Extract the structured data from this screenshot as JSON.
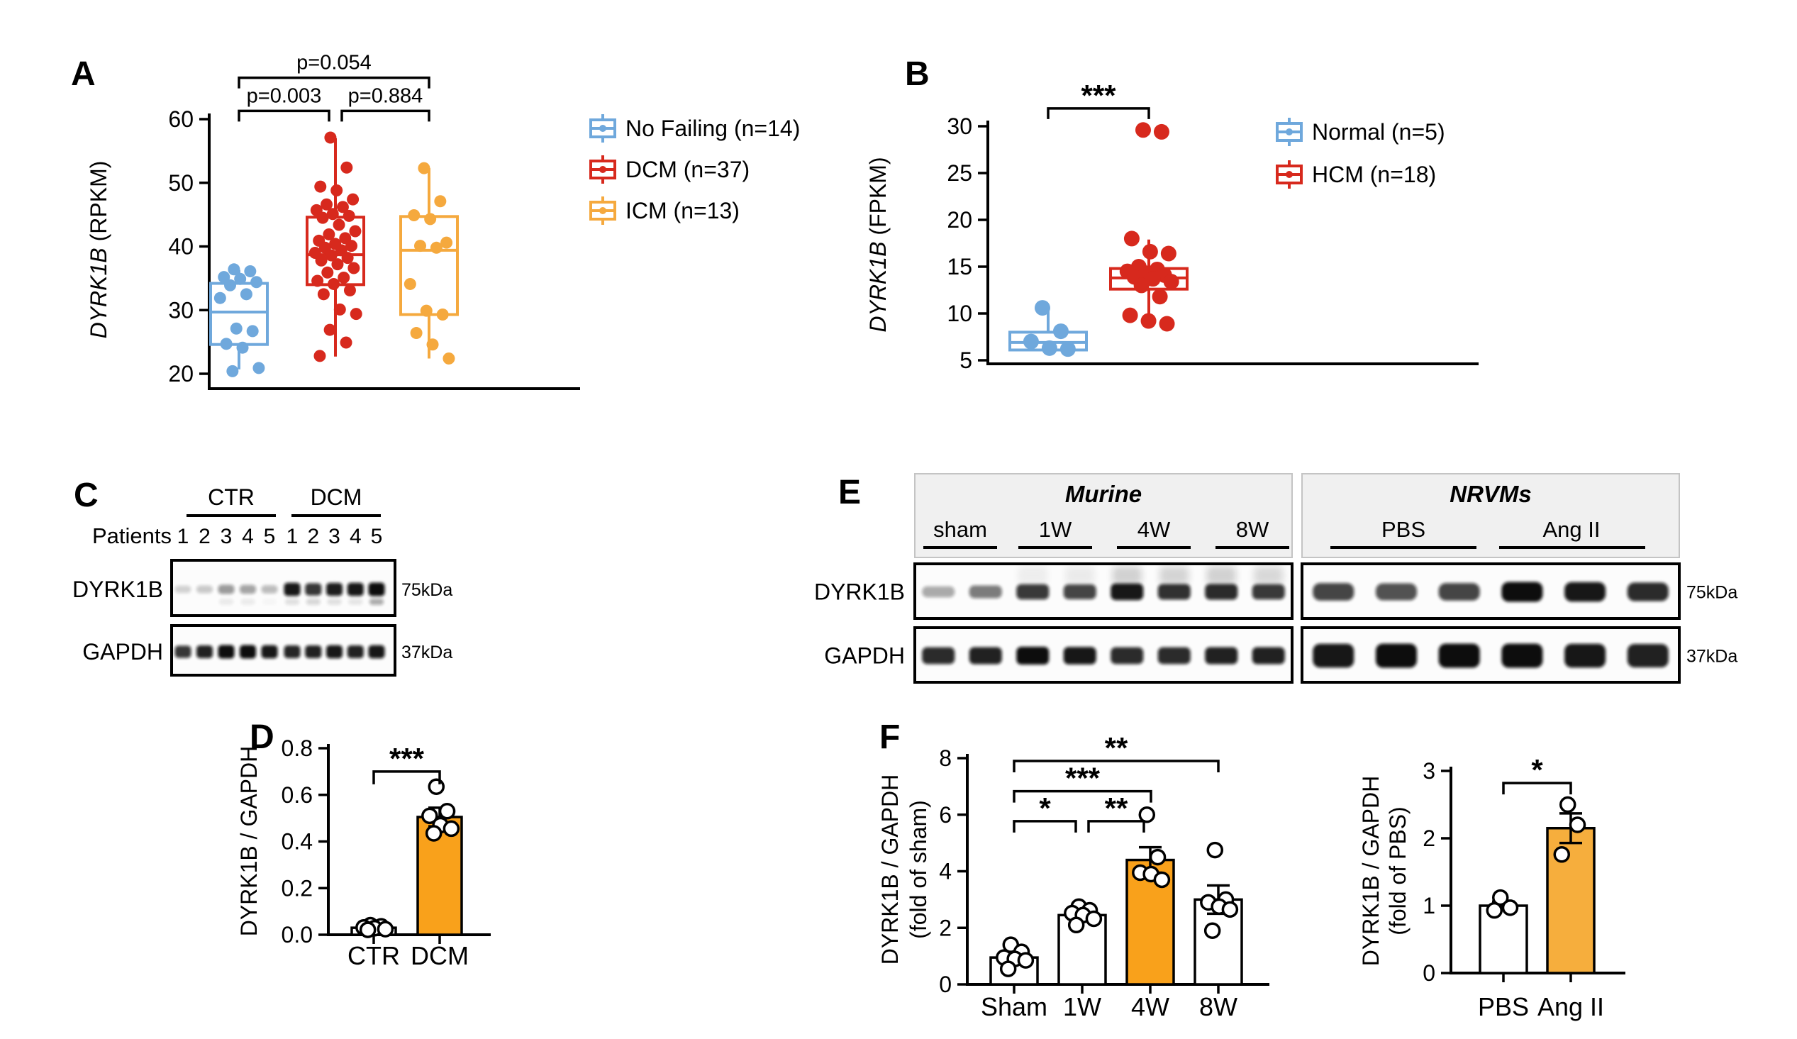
{
  "figure": {
    "background": "#FFFFFF"
  },
  "colors": {
    "blue": "#6FA8DC",
    "red": "#D7291D",
    "orange_box": "#F5A93E",
    "orange_bar": "#F9A11B",
    "orange_bar_light": "#F6AE3D"
  },
  "chart_data": [
    {
      "panel": "A",
      "type": "box",
      "label": "A",
      "ylabel_italic": "DYRK1B",
      "ylabel_rest": "(RPKM)",
      "yticks": [
        20,
        30,
        40,
        50,
        60
      ],
      "ylim": [
        20,
        60
      ],
      "legend": [
        {
          "label": "No Failing (n=14)",
          "color": "#6FA8DC"
        },
        {
          "label": "DCM (n=37)",
          "color": "#D7291D"
        },
        {
          "label": "ICM (n=13)",
          "color": "#F5A93E"
        }
      ],
      "groups": [
        {
          "name": "No Failing",
          "n": 14,
          "color": "#6FA8DC",
          "box": {
            "q1": 24.6,
            "median": 29.7,
            "q3": 34.2,
            "whisker_low": 20.7,
            "whisker_high": 36.3
          },
          "points": [
            36.4,
            36.1,
            35.2,
            34.9,
            34.4,
            33.9,
            32.5,
            31.9,
            27.1,
            26.7,
            24.7,
            24.1,
            20.9,
            20.4
          ]
        },
        {
          "name": "DCM",
          "n": 37,
          "color": "#D7291D",
          "box": {
            "q1": 34.0,
            "median": 38.7,
            "q3": 44.6,
            "whisker_low": 22.7,
            "whisker_high": 57.0
          },
          "points": [
            57.1,
            52.4,
            49.4,
            48.8,
            47.4,
            46.6,
            46.2,
            45.7,
            45.1,
            44.8,
            44.5,
            43.4,
            42.4,
            41.9,
            41.3,
            40.9,
            40.4,
            40.1,
            39.8,
            39.4,
            39.0,
            38.6,
            38.2,
            37.8,
            37.2,
            36.6,
            35.9,
            35.1,
            34.6,
            34.1,
            33.1,
            32.5,
            30.1,
            29.4,
            26.9,
            24.9,
            22.8
          ]
        },
        {
          "name": "ICM",
          "n": 13,
          "color": "#F5A93E",
          "box": {
            "q1": 29.3,
            "median": 39.4,
            "q3": 44.7,
            "whisker_low": 22.4,
            "whisker_high": 52.3
          },
          "points": [
            52.3,
            47.1,
            44.9,
            44.3,
            40.6,
            40.1,
            39.8,
            34.1,
            29.9,
            29.3,
            26.4,
            24.6,
            22.4
          ]
        }
      ],
      "brackets": [
        {
          "from": 0,
          "to": 1,
          "y": 61.3,
          "label": "p=0.003"
        },
        {
          "from": 1,
          "to": 2,
          "y": 61.3,
          "label": "p=0.884"
        },
        {
          "from": 0,
          "to": 2,
          "y": 66.5,
          "label": "p=0.054"
        }
      ]
    },
    {
      "panel": "B",
      "type": "box",
      "label": "B",
      "ylabel_italic": "DYRK1B",
      "ylabel_rest": "(FPKM)",
      "yticks": [
        5,
        10,
        15,
        20,
        25,
        30
      ],
      "ylim": [
        5,
        30
      ],
      "legend": [
        {
          "label": "Normal (n=5)",
          "color": "#6FA8DC"
        },
        {
          "label": "HCM (n=18)",
          "color": "#D7291D"
        }
      ],
      "groups": [
        {
          "name": "Normal",
          "n": 5,
          "color": "#6FA8DC",
          "box": {
            "q1": 6.1,
            "median": 6.9,
            "q3": 8.0,
            "whisker_low": 6.1,
            "whisker_high": 10.4
          },
          "points": [
            10.6,
            8.1,
            7.0,
            6.3,
            6.2
          ]
        },
        {
          "name": "HCM",
          "n": 18,
          "color": "#D7291D",
          "box": {
            "q1": 12.6,
            "median": 13.8,
            "q3": 14.8,
            "whisker_low": 9.7,
            "whisker_high": 17.9
          },
          "points": [
            29.6,
            29.4,
            18.0,
            16.6,
            16.4,
            15.0,
            14.7,
            14.5,
            14.3,
            14.1,
            13.9,
            13.7,
            13.4,
            13.0,
            11.8,
            9.8,
            9.2,
            8.9
          ]
        }
      ],
      "brackets": [
        {
          "from": 0,
          "to": 1,
          "y": 31.9,
          "label": "***"
        }
      ]
    },
    {
      "panel": "C",
      "type": "blot",
      "label": "C",
      "patients_label": "Patients",
      "groups": [
        {
          "label": "CTR",
          "lanes": [
            "1",
            "2",
            "3",
            "4",
            "5"
          ]
        },
        {
          "label": "DCM",
          "lanes": [
            "1",
            "2",
            "3",
            "4",
            "5"
          ]
        }
      ],
      "rows": [
        {
          "name": "DYRK1B",
          "kda": "75kDa",
          "bands": [
            0.06,
            0.1,
            0.32,
            0.28,
            0.16,
            0.95,
            0.8,
            0.92,
            0.95,
            1.0
          ],
          "sub_bands": [
            0,
            0,
            0.14,
            0.13,
            0.05,
            0.22,
            0.3,
            0.22,
            0.18,
            0.65
          ]
        },
        {
          "name": "GAPDH",
          "kda": "37kDa",
          "bands": [
            0.8,
            0.9,
            1.0,
            1.0,
            0.95,
            0.88,
            0.9,
            0.95,
            0.9,
            0.95
          ],
          "sub_bands": [
            0,
            0,
            0,
            0,
            0,
            0,
            0,
            0,
            0,
            0
          ]
        }
      ]
    },
    {
      "panel": "D",
      "type": "bar",
      "label": "D",
      "ylabel_lines": [
        "DYRK1B / GAPDH"
      ],
      "yticks": [
        "0.0",
        "0.2",
        "0.4",
        "0.6",
        "0.8"
      ],
      "ymax": 0.8,
      "categories": [
        "CTR",
        "DCM"
      ],
      "bars": [
        {
          "category": "CTR",
          "value": 0.03,
          "sem": 0.01,
          "color": "#FFFFFF",
          "points": [
            0.041,
            0.036,
            0.031,
            0.028,
            0.024,
            0.021
          ]
        },
        {
          "category": "DCM",
          "value": 0.505,
          "sem": 0.04,
          "color": "#F9A11B",
          "points": [
            0.635,
            0.53,
            0.51,
            0.47,
            0.455,
            0.435
          ]
        }
      ],
      "brackets": [
        {
          "from": 0,
          "to": 1,
          "y": 0.7,
          "label": "***"
        }
      ]
    },
    {
      "panel": "E",
      "type": "blot",
      "label": "E",
      "rows": [
        {
          "name": "DYRK1B",
          "kda": "75kDa"
        },
        {
          "name": "GAPDH",
          "kda": "37kDa"
        }
      ],
      "sections": [
        {
          "title": "Murine",
          "groups": [
            {
              "label": "sham",
              "lanes": 2
            },
            {
              "label": "1W",
              "lanes": 2
            },
            {
              "label": "4W",
              "lanes": 2
            },
            {
              "label": "8W",
              "lanes": 2
            }
          ],
          "dyrk1b": [
            0.22,
            0.45,
            0.78,
            0.72,
            0.95,
            0.82,
            0.85,
            0.78
          ],
          "smear": [
            0,
            0,
            0.18,
            0.22,
            0.55,
            0.5,
            0.55,
            0.45
          ],
          "gapdh": [
            0.85,
            0.9,
            1.0,
            0.95,
            0.85,
            0.85,
            0.9,
            0.9
          ]
        },
        {
          "title": "NRVMs",
          "groups": [
            {
              "label": "PBS",
              "lanes": 3
            },
            {
              "label": "Ang II",
              "lanes": 3
            }
          ],
          "dyrk1b": [
            0.72,
            0.66,
            0.72,
            1.0,
            0.95,
            0.85
          ],
          "smear": [
            0,
            0,
            0,
            0,
            0,
            0
          ],
          "gapdh": [
            0.95,
            1.0,
            1.0,
            1.0,
            0.95,
            0.9
          ]
        }
      ]
    },
    {
      "panel": "F",
      "type": "bar",
      "label": "F",
      "ylabel_lines": [
        "DYRK1B / GAPDH",
        "(fold of sham)"
      ],
      "yticks": [
        "0",
        "2",
        "4",
        "6",
        "8"
      ],
      "ymax": 8,
      "categories": [
        "Sham",
        "1W",
        "4W",
        "8W"
      ],
      "bars": [
        {
          "category": "Sham",
          "value": 0.95,
          "sem": 0.15,
          "color": "#FFFFFF",
          "points": [
            1.4,
            1.15,
            0.95,
            0.9,
            0.85,
            0.55
          ]
        },
        {
          "category": "1W",
          "value": 2.45,
          "sem": 0.15,
          "color": "#FFFFFF",
          "points": [
            2.75,
            2.62,
            2.52,
            2.45,
            2.32,
            2.1
          ]
        },
        {
          "category": "4W",
          "value": 4.4,
          "sem": 0.45,
          "color": "#F9A11B",
          "points": [
            6.0,
            4.5,
            3.95,
            3.9,
            3.7
          ]
        },
        {
          "category": "8W",
          "value": 3.0,
          "sem": 0.5,
          "color": "#FFFFFF",
          "points": [
            4.75,
            3.0,
            2.9,
            2.75,
            2.65,
            1.9
          ]
        }
      ],
      "brackets": [
        {
          "from": 0,
          "to": 1,
          "y": 5.77,
          "label": "*"
        },
        {
          "from": 1,
          "to": 2,
          "y": 5.77,
          "label": "**"
        },
        {
          "from": 0,
          "to": 2,
          "y": 6.83,
          "label": "***"
        },
        {
          "from": 0,
          "to": 3,
          "y": 7.9,
          "label": "**"
        }
      ]
    },
    {
      "panel": "F",
      "type": "bar",
      "label": "",
      "ylabel_lines": [
        "DYRK1B / GAPDH",
        "(fold of PBS)"
      ],
      "yticks": [
        "0",
        "1",
        "2",
        "3"
      ],
      "ymax": 3,
      "categories": [
        "PBS",
        "Ang II"
      ],
      "bars": [
        {
          "category": "PBS",
          "value": 1.0,
          "sem": 0.06,
          "color": "#FFFFFF",
          "points": [
            1.12,
            0.97,
            0.93
          ]
        },
        {
          "category": "Ang II",
          "value": 2.15,
          "sem": 0.22,
          "color": "#F6AE3D",
          "points": [
            2.5,
            2.2,
            1.76
          ]
        }
      ],
      "brackets": [
        {
          "from": 0,
          "to": 1,
          "y": 2.82,
          "label": "*"
        }
      ]
    }
  ]
}
